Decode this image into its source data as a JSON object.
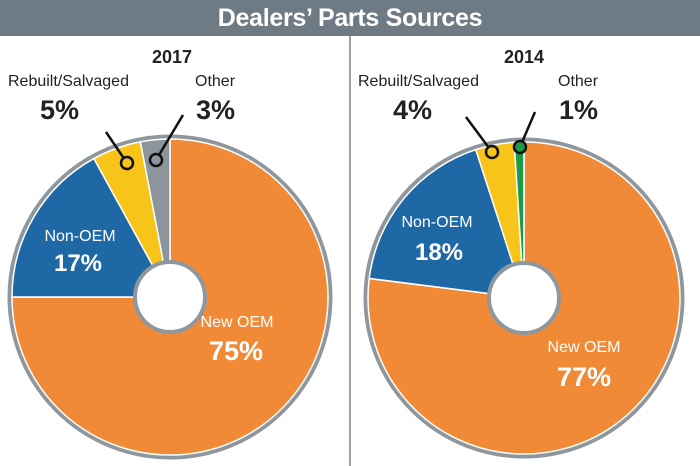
{
  "title": "Dealers’ Parts Sources",
  "chart_data": [
    {
      "type": "pie",
      "title": "2017",
      "categories": [
        "New OEM",
        "Non-OEM",
        "Rebuilt/Salvaged",
        "Other"
      ],
      "values": [
        75,
        17,
        5,
        3
      ],
      "value_labels": [
        "75%",
        "17%",
        "5%",
        "3%"
      ],
      "colors": [
        "#f18a36",
        "#1f68a6",
        "#f7c41a",
        "#8c959c"
      ],
      "start_category": "New OEM",
      "direction": "clockwise from top"
    },
    {
      "type": "pie",
      "title": "2014",
      "categories": [
        "New OEM",
        "Non-OEM",
        "Rebuilt/Salvaged",
        "Other"
      ],
      "values": [
        77,
        18,
        4,
        1
      ],
      "value_labels": [
        "77%",
        "18%",
        "4%",
        "1%"
      ],
      "colors": [
        "#f18a36",
        "#1f68a6",
        "#f7c41a",
        "#1e9a48"
      ],
      "start_category": "New OEM",
      "direction": "clockwise from top"
    }
  ]
}
